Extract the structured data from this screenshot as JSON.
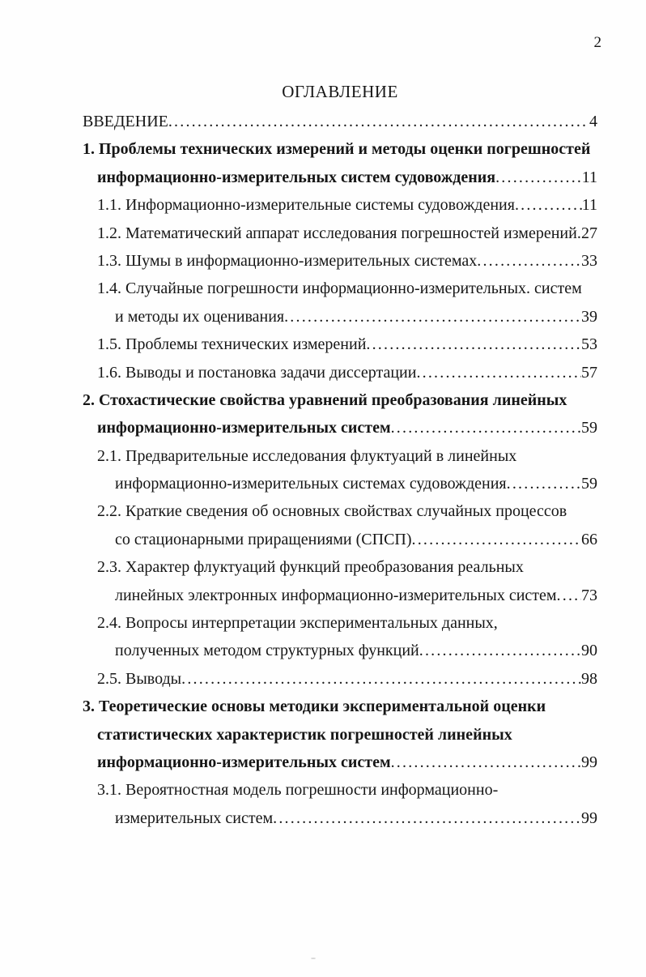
{
  "page": {
    "number": "2",
    "title": "ОГЛАВЛЕНИЕ"
  },
  "colors": {
    "ink": "#161616",
    "paper": "#fefefe"
  },
  "toc_lines": [
    {
      "text": "ВВЕДЕНИЕ",
      "page": " 4",
      "indent": 0,
      "bold": false
    },
    {
      "text": "1. Проблемы технических измерений и методы оценки погрешностей",
      "page": "",
      "indent": 0,
      "bold": true
    },
    {
      "text": "информационно-измерительных систем судовождения",
      "page": "11",
      "indent": 1,
      "bold": true
    },
    {
      "text": "1.1. Информационно-измерительные системы судовождения",
      "page": "11",
      "indent": 1,
      "bold": false
    },
    {
      "text": "1.2. Математический аппарат исследования погрешностей измерений",
      "page": "27",
      "indent": 1,
      "bold": false
    },
    {
      "text": "1.3. Шумы в информационно-измерительных системах",
      "page": "33",
      "indent": 1,
      "bold": false
    },
    {
      "text": "1.4. Случайные погрешности информационно-измерительных. систем",
      "page": "",
      "indent": 1,
      "bold": false
    },
    {
      "text": "и методы их оценивания",
      "page": "39",
      "indent": 2,
      "bold": false
    },
    {
      "text": "1.5. Проблемы технических измерений",
      "page": "53",
      "indent": 1,
      "bold": false
    },
    {
      "text": "1.6. Выводы и постановка задачи диссертации",
      "page": "57",
      "indent": 1,
      "bold": false
    },
    {
      "text": "2. Стохастические свойства уравнений преобразования линейных",
      "page": "",
      "indent": 0,
      "bold": true
    },
    {
      "text": "информационно-измерительных систем",
      "page": "59",
      "indent": 1,
      "bold": true
    },
    {
      "text": "2.1. Предварительные исследования флуктуаций в линейных",
      "page": "",
      "indent": 1,
      "bold": false
    },
    {
      "text": "информационно-измерительных системах судовождения",
      "page": "59",
      "indent": 2,
      "bold": false
    },
    {
      "text": "2.2. Краткие сведения об основных свойствах случайных процессов",
      "page": "",
      "indent": 1,
      "bold": false
    },
    {
      "text": "со стационарными приращениями (СПСП)",
      "page": "66",
      "indent": 2,
      "bold": false
    },
    {
      "text": "2.3. Характер флуктуаций функций преобразования реальных",
      "page": "",
      "indent": 1,
      "bold": false
    },
    {
      "text": "линейных электронных информационно-измерительных систем",
      "page": "73",
      "indent": 2,
      "bold": false
    },
    {
      "text": "2.4. Вопросы интерпретации экспериментальных данных,",
      "page": "",
      "indent": 1,
      "bold": false
    },
    {
      "text": "полученных методом структурных функций",
      "page": "90",
      "indent": 2,
      "bold": false
    },
    {
      "text": "2.5. Выводы",
      "page": "98",
      "indent": 1,
      "bold": false
    },
    {
      "text": "3. Теоретические основы методики экспериментальной оценки",
      "page": "",
      "indent": 0,
      "bold": true
    },
    {
      "text": "статистических характеристик погрешностей линейных",
      "page": "",
      "indent": 1,
      "bold": true
    },
    {
      "text": "информационно-измерительных систем",
      "page": "99",
      "indent": 1,
      "bold": true
    },
    {
      "text": "3.1. Вероятностная модель погрешности информационно-",
      "page": "",
      "indent": 1,
      "bold": false
    },
    {
      "text": "измерительных систем",
      "page": "99",
      "indent": 2,
      "bold": false
    }
  ]
}
